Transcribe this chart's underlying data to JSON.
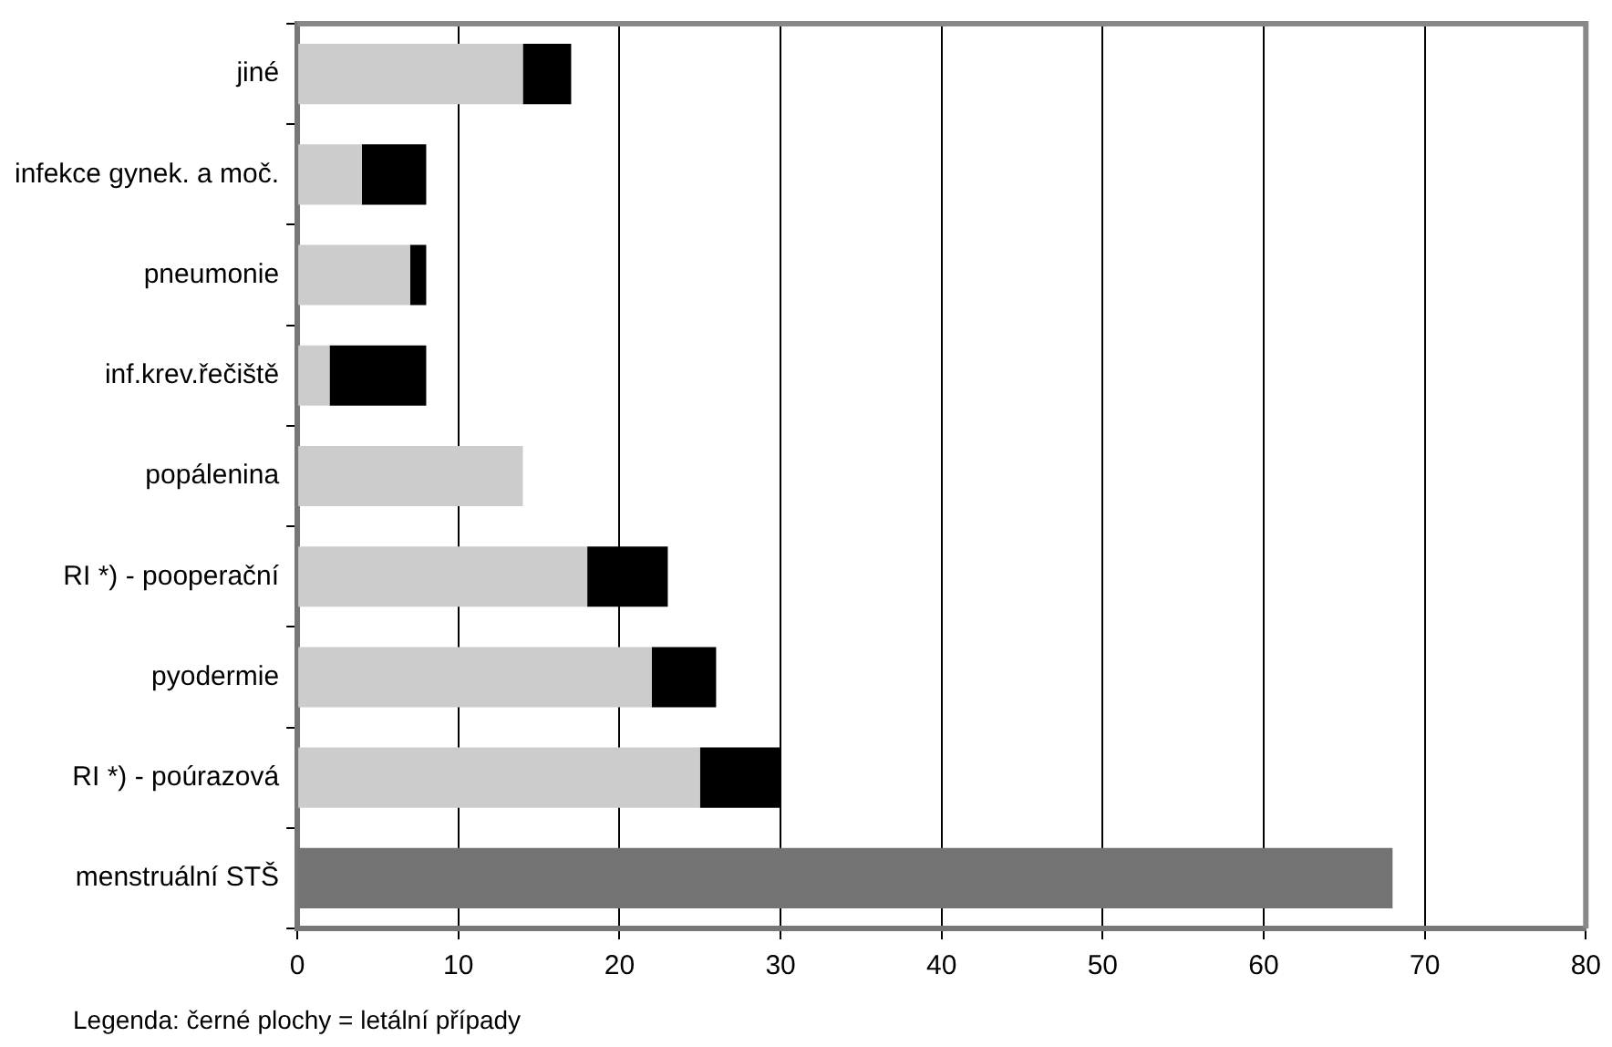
{
  "chart_data": {
    "type": "bar",
    "orientation": "horizontal",
    "stacked": true,
    "categories": [
      "jiné",
      "infekce gynek. a moč.",
      "pneumonie",
      "inf.krev.řečiště",
      "popálenina",
      "RI *) - pooperační",
      "pyodermie",
      "RI *) - poúrazová",
      "menstruální STŠ"
    ],
    "series": [
      {
        "colors": [
          "#cccccc",
          "#cccccc",
          "#cccccc",
          "#cccccc",
          "#cccccc",
          "#cccccc",
          "#cccccc",
          "#cccccc",
          "#737373"
        ],
        "values": [
          14,
          4,
          7,
          2,
          14,
          18,
          22,
          25,
          68
        ]
      },
      {
        "color": "#000000",
        "values": [
          3,
          4,
          1,
          6,
          null,
          5,
          4,
          5,
          null
        ]
      }
    ],
    "xlim": [
      0,
      80
    ],
    "xticks": [
      0,
      10,
      20,
      30,
      40,
      50,
      60,
      70,
      80
    ],
    "grid": "x",
    "legend": false,
    "annotations": [
      "Legenda: černé plochy = letální případy"
    ]
  }
}
